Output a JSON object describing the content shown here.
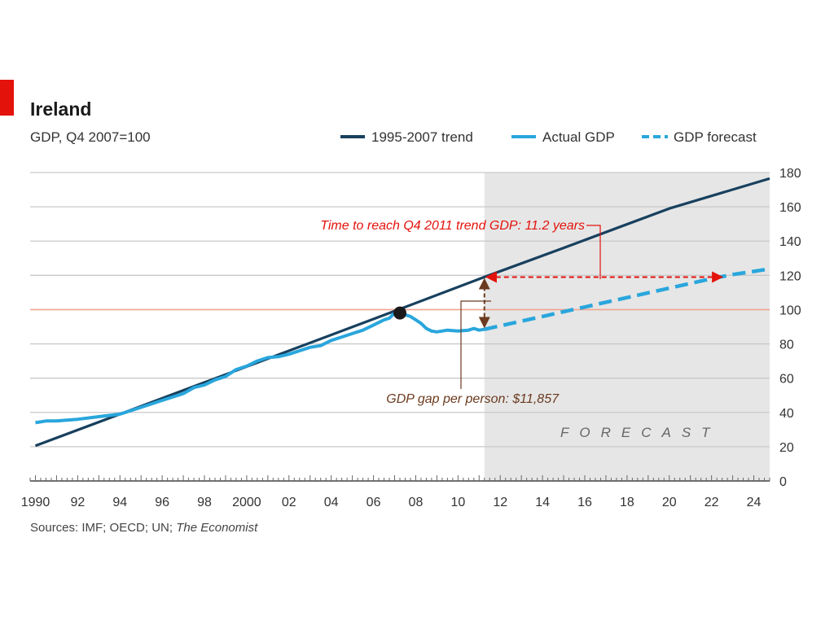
{
  "title": "Ireland",
  "subtitle": "GDP, Q4 2007=100",
  "legend": [
    {
      "label": "1995-2007 trend",
      "color": "#17405e",
      "style": "solid"
    },
    {
      "label": "Actual GDP",
      "color": "#29a6dc",
      "style": "solid"
    },
    {
      "label": "GDP forecast",
      "color": "#29a6dc",
      "style": "dashed"
    }
  ],
  "forecast_label": "FORECAST",
  "annotations": {
    "time_to_trend": "Time to reach Q4 2011 trend GDP: 11.2 years",
    "gdp_gap": "GDP gap per person: $11,857"
  },
  "source": {
    "prefix": "Sources: IMF; OECD; UN; ",
    "italic": "The Economist"
  },
  "colors": {
    "trend": "#17405e",
    "actual": "#29a6dc",
    "reference": "#f4a38c",
    "annotation_red": "#e3120b",
    "annotation_brown": "#6b3a1f",
    "shade": "#e6e6e6",
    "brand_red": "#e3120b"
  },
  "chart_data": {
    "type": "line",
    "title": "Ireland",
    "subtitle": "GDP, Q4 2007=100",
    "xlim": [
      1989.75,
      2024.75
    ],
    "ylim": [
      0,
      180
    ],
    "x_ticks": [
      1990,
      1992,
      1994,
      1996,
      1998,
      2000,
      2002,
      2004,
      2006,
      2008,
      2010,
      2012,
      2014,
      2016,
      2018,
      2020,
      2022,
      2024
    ],
    "x_tick_labels": [
      "1990",
      "92",
      "94",
      "96",
      "98",
      "2000",
      "02",
      "04",
      "06",
      "08",
      "10",
      "12",
      "14",
      "16",
      "18",
      "20",
      "22",
      "24"
    ],
    "y_ticks": [
      0,
      20,
      40,
      60,
      80,
      100,
      120,
      140,
      160,
      180
    ],
    "y_axis_side": "right",
    "grid": true,
    "reference_line": 100,
    "forecast_start": 2011.25,
    "highlight_point": {
      "x": 2007.25,
      "y": 98
    },
    "series": [
      {
        "name": "1995-2007 trend",
        "style": "solid",
        "x": [
          1990,
          1994,
          1998,
          2002,
          2006,
          2011.25,
          2015,
          2020,
          2024.75
        ],
        "y": [
          20.5,
          39,
          57.5,
          76,
          94.5,
          119,
          136,
          159,
          176.5
        ]
      },
      {
        "name": "Actual GDP",
        "style": "solid",
        "x": [
          1990,
          1990.5,
          1991,
          1992,
          1993,
          1994,
          1995,
          1996,
          1997,
          1997.5,
          1998,
          1998.5,
          1999,
          1999.5,
          2000,
          2000.5,
          2001,
          2001.5,
          2002,
          2002.5,
          2003,
          2003.5,
          2004,
          2004.5,
          2005,
          2005.5,
          2006,
          2006.5,
          2006.75,
          2007,
          2007.25,
          2007.5,
          2007.75,
          2008,
          2008.25,
          2008.5,
          2008.75,
          2009,
          2009.5,
          2010,
          2010.5,
          2010.75,
          2011,
          2011.25
        ],
        "y": [
          34,
          35,
          35,
          36,
          37.5,
          39,
          43,
          47,
          51,
          54.5,
          56,
          59,
          61,
          65,
          67,
          70,
          72,
          72.5,
          74,
          76,
          78,
          79,
          82,
          84,
          86,
          88,
          91,
          94,
          95,
          98,
          98,
          97,
          96,
          94,
          92,
          89,
          87.5,
          87,
          88,
          87.5,
          88,
          89,
          88,
          88.5
        ]
      },
      {
        "name": "GDP forecast",
        "style": "dashed",
        "x": [
          2011.25,
          2012,
          2013,
          2014,
          2015,
          2016,
          2017,
          2018,
          2019,
          2020,
          2021,
          2022,
          2023,
          2024,
          2024.75
        ],
        "y": [
          88.5,
          90.5,
          93.3,
          96,
          98.8,
          101.5,
          104.3,
          107,
          109.8,
          112.5,
          115.3,
          118,
          120.5,
          122.3,
          123.8
        ]
      }
    ],
    "annotations": [
      {
        "text": "Time to reach Q4 2011 trend GDP: 11.2 years",
        "from": [
          2011.25,
          119
        ],
        "to": [
          2022.45,
          119
        ]
      },
      {
        "text": "GDP gap per person: $11,857",
        "from": [
          2011.25,
          119
        ],
        "to": [
          2011.25,
          88.5
        ]
      }
    ]
  }
}
